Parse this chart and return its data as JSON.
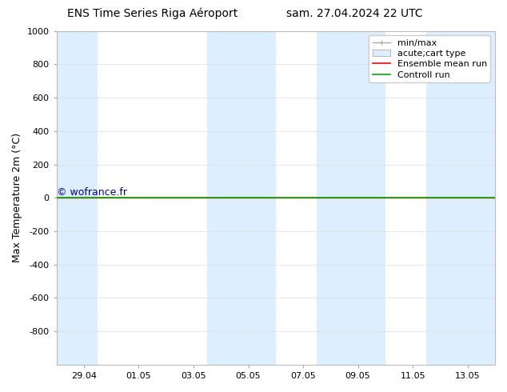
{
  "title_left": "ENS Time Series Riga Aéroport",
  "title_right": "sam. 27.04.2024 22 UTC",
  "ylabel": "Max Temperature 2m (°C)",
  "watermark": "© wofrance.fr",
  "watermark_color": "#0000bb",
  "ylim_bottom": -1000,
  "ylim_top": 1000,
  "yticks": [
    -800,
    -600,
    -400,
    -200,
    0,
    200,
    400,
    600,
    800,
    1000
  ],
  "xlim_left": 0,
  "xlim_right": 16,
  "xtick_labels": [
    "29.04",
    "01.05",
    "03.05",
    "05.05",
    "07.05",
    "09.05",
    "11.05",
    "13.05"
  ],
  "xtick_positions": [
    1,
    3,
    5,
    7,
    9,
    11,
    13,
    15
  ],
  "shaded_regions": [
    [
      0.0,
      1.5
    ],
    [
      5.5,
      8.0
    ],
    [
      9.5,
      12.0
    ],
    [
      13.5,
      16.0
    ]
  ],
  "shaded_color": "#ddeeff",
  "grid_color": "#dddddd",
  "ensemble_mean_color": "#ff0000",
  "control_run_color": "#00aa00",
  "minmax_color": "#aaaaaa",
  "legend_labels": [
    "min/max",
    "acute;cart type",
    "Ensemble mean run",
    "Controll run"
  ],
  "hline_y": 0,
  "bg_color": "#ffffff",
  "font_size_title": 10,
  "font_size_tick": 8,
  "font_size_ylabel": 9,
  "font_size_legend": 8,
  "font_size_watermark": 9
}
